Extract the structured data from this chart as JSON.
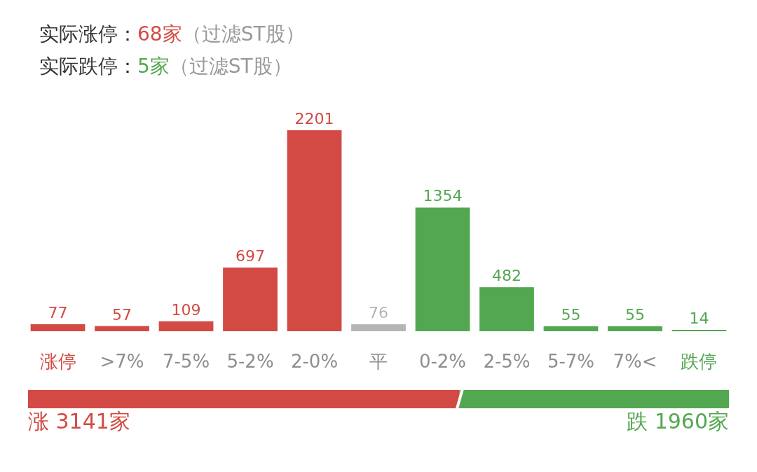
{
  "chart_data": [
    {
      "type": "bar",
      "annotations": [
        "实际涨停：68家（过滤ST股）",
        "实际跌停：5家（过滤ST股）"
      ],
      "categories": [
        "涨停",
        ">7%",
        "7-5%",
        "5-2%",
        "2-0%",
        "平",
        "0-2%",
        "2-5%",
        "5-7%",
        "7%<",
        "跌停"
      ],
      "values": [
        77,
        57,
        109,
        697,
        2201,
        76,
        1354,
        482,
        55,
        55,
        14
      ],
      "colors": [
        "#d24a43",
        "#d24a43",
        "#d24a43",
        "#d24a43",
        "#d24a43",
        "#b5b5b5",
        "#53a751",
        "#53a751",
        "#53a751",
        "#53a751",
        "#53a751"
      ],
      "data_labels": true
    },
    {
      "type": "bar",
      "orientation": "horizontal",
      "stacked": true,
      "categories": [
        null
      ],
      "legend": false,
      "series": [
        {
          "color": "#d24a43",
          "values": [
            3141
          ],
          "value_labels": [
            "涨 3141家"
          ]
        },
        {
          "color": "#53a751",
          "values": [
            1960
          ],
          "value_labels": [
            "跌 1960家"
          ]
        }
      ]
    }
  ]
}
